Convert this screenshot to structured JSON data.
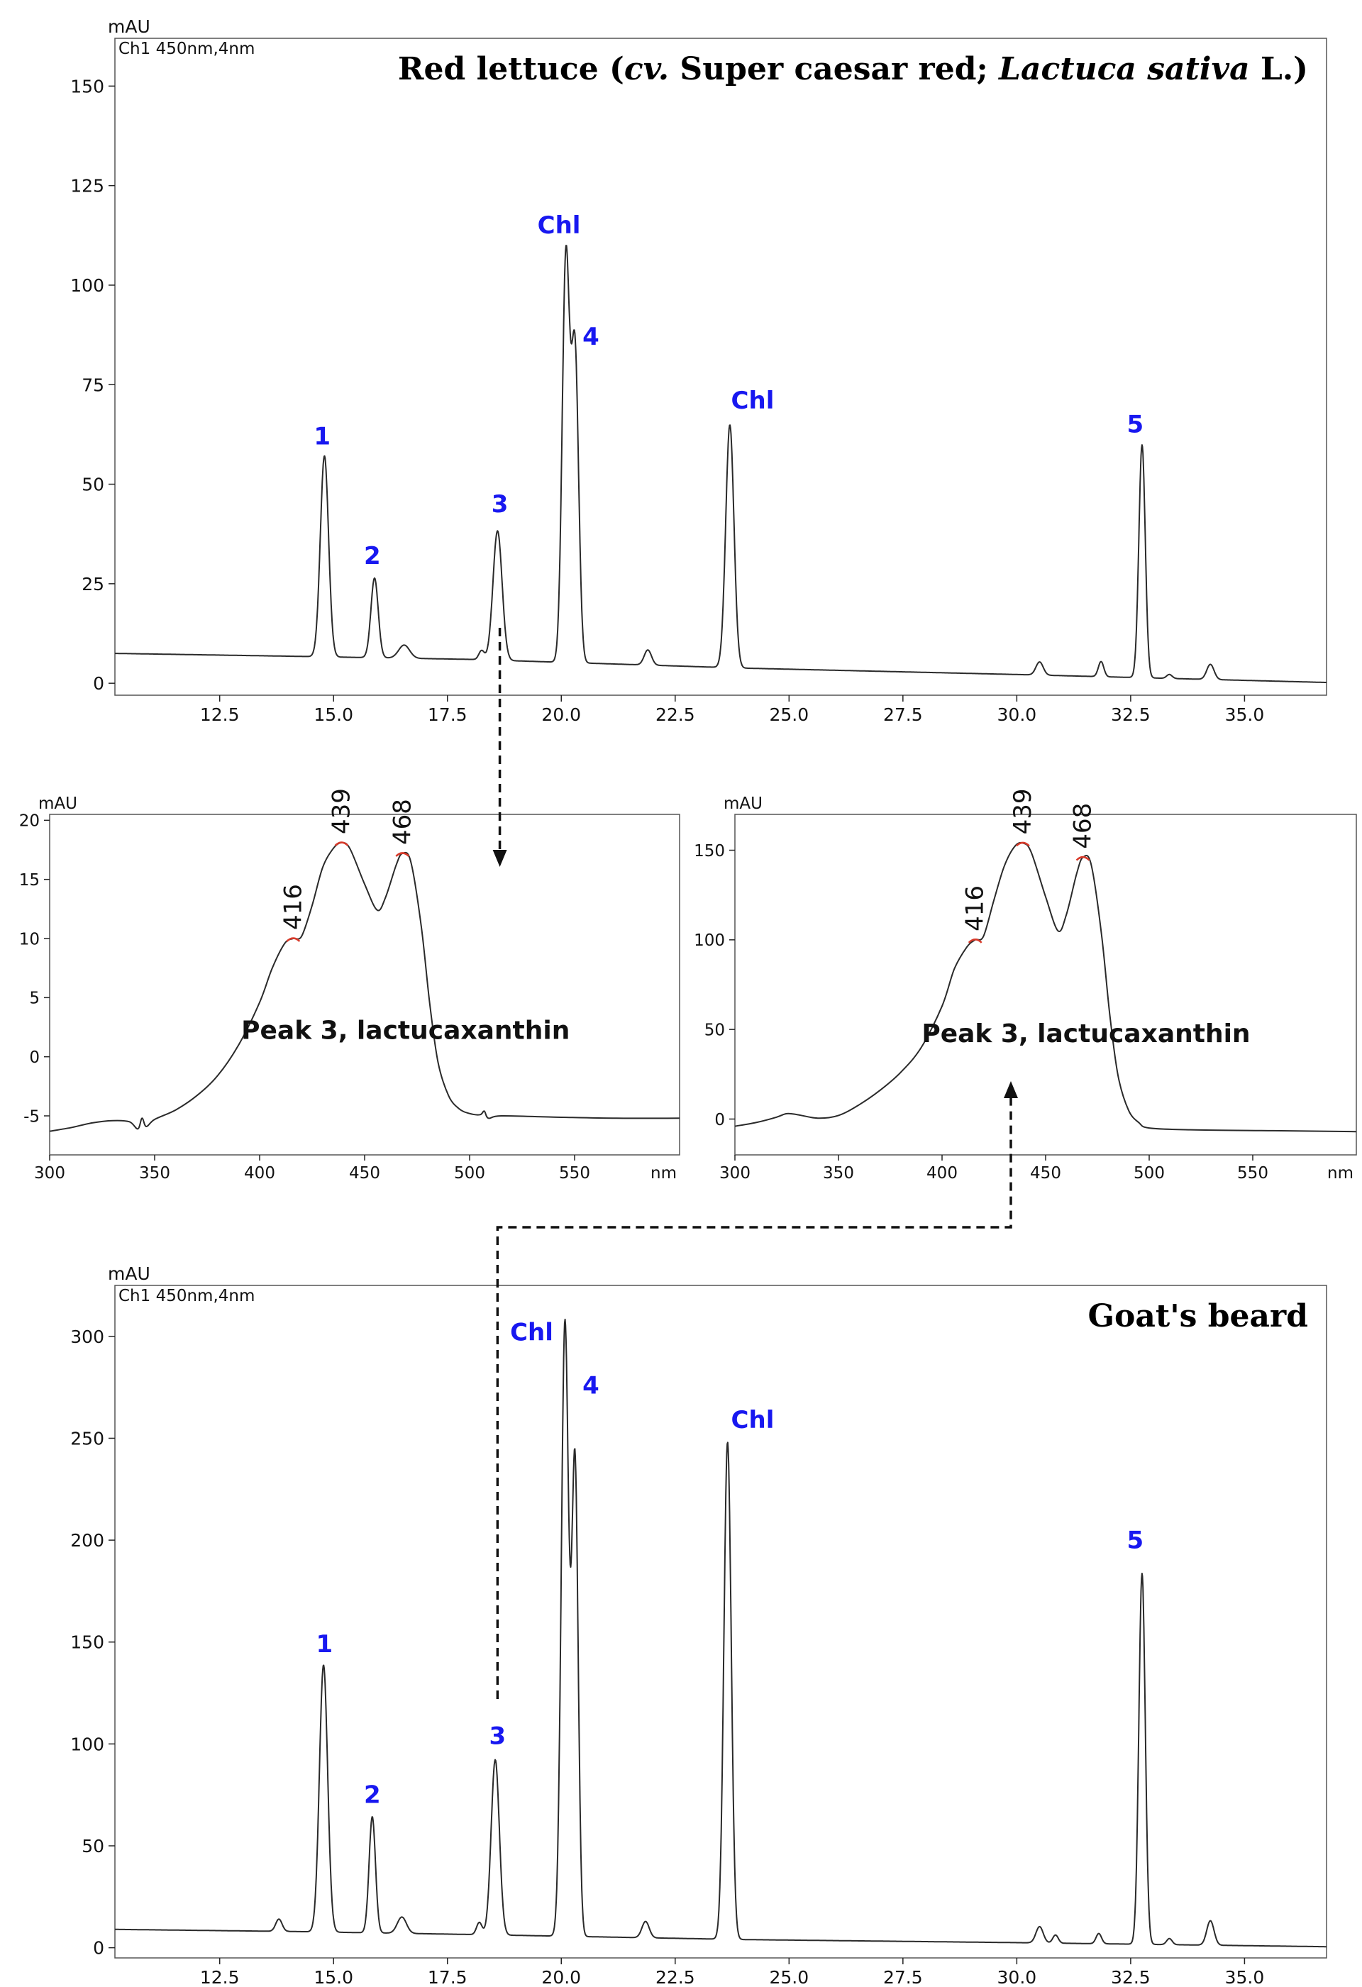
{
  "colors": {
    "trace": "#2a2a2a",
    "peak_label": "#1818f0",
    "max_marker": "#d83a2a",
    "frame": "#555555",
    "arrow": "#111111"
  },
  "chart_data": [
    {
      "id": "top",
      "type": "line",
      "title_parts": [
        {
          "text": "Red lettuce (",
          "italic": false
        },
        {
          "text": "cv.",
          "italic": true
        },
        {
          "text": " Super caesar red; ",
          "italic": false
        },
        {
          "text": "Lactuca sativa",
          "italic": true
        },
        {
          "text": " L.)",
          "italic": false
        }
      ],
      "channel_label": "Ch1 450nm,4nm",
      "ylabel": "mAU",
      "xlabel": "",
      "xlim": [
        10.2,
        36.8
      ],
      "ylim": [
        -3,
        162
      ],
      "xticks": [
        12.5,
        15.0,
        17.5,
        20.0,
        22.5,
        25.0,
        27.5,
        30.0,
        32.5,
        35.0
      ],
      "xtick_labels": [
        "12.5",
        "15.0",
        "17.5",
        "20.0",
        "22.5",
        "25.0",
        "27.5",
        "30.0",
        "32.5",
        "35.0"
      ],
      "yticks": [
        0,
        25,
        50,
        75,
        100,
        125,
        150
      ],
      "ytick_labels": [
        "0",
        "25",
        "50",
        "75",
        "100",
        "125",
        "150"
      ],
      "baseline": [
        [
          10.2,
          7.5
        ],
        [
          14.0,
          6.8
        ],
        [
          18.0,
          6.0
        ],
        [
          24.0,
          3.8
        ],
        [
          30.0,
          2.2
        ],
        [
          36.8,
          0.2
        ]
      ],
      "peaks": [
        {
          "t": 14.8,
          "h": 50.5,
          "w": 0.09
        },
        {
          "t": 15.9,
          "h": 20.0,
          "w": 0.08
        },
        {
          "t": 16.55,
          "h": 3.3,
          "w": 0.12
        },
        {
          "t": 18.25,
          "h": 2.3,
          "w": 0.06
        },
        {
          "t": 18.6,
          "h": 32.5,
          "w": 0.1
        },
        {
          "t": 20.1,
          "h": 101.0,
          "w": 0.08
        },
        {
          "t": 20.3,
          "h": 78.0,
          "w": 0.08
        },
        {
          "t": 21.9,
          "h": 3.8,
          "w": 0.08
        },
        {
          "t": 23.7,
          "h": 61.0,
          "w": 0.09
        },
        {
          "t": 30.5,
          "h": 3.3,
          "w": 0.08
        },
        {
          "t": 31.85,
          "h": 3.8,
          "w": 0.06
        },
        {
          "t": 32.75,
          "h": 58.5,
          "w": 0.07
        },
        {
          "t": 33.35,
          "h": 1.0,
          "w": 0.06
        },
        {
          "t": 34.25,
          "h": 3.8,
          "w": 0.08
        }
      ],
      "annotations": [
        {
          "text": "1",
          "t": 14.75,
          "y": 60
        },
        {
          "text": "2",
          "t": 15.85,
          "y": 30
        },
        {
          "text": "3",
          "t": 18.65,
          "y": 43
        },
        {
          "text": "Chl",
          "t": 19.95,
          "y": 113
        },
        {
          "text": "4",
          "t": 20.65,
          "y": 85
        },
        {
          "text": "Chl",
          "t": 24.2,
          "y": 69
        },
        {
          "text": "5",
          "t": 32.6,
          "y": 63
        }
      ]
    },
    {
      "id": "spec-left",
      "type": "line",
      "title": "Peak 3, lactucaxanthin",
      "ylabel": "mAU",
      "xlabel": "nm",
      "xlim": [
        300,
        600
      ],
      "ylim": [
        -8.3,
        20.5
      ],
      "xticks": [
        300,
        350,
        400,
        450,
        500,
        550
      ],
      "xtick_labels": [
        "300",
        "350",
        "400",
        "450",
        "500",
        "550"
      ],
      "yticks": [
        -5,
        0,
        5,
        10,
        15,
        20
      ],
      "ytick_labels": [
        "-5",
        "0",
        "5",
        "10",
        "15",
        "20"
      ],
      "points": [
        [
          300,
          -6.3
        ],
        [
          310,
          -6.0
        ],
        [
          320,
          -5.6
        ],
        [
          330,
          -5.4
        ],
        [
          338,
          -5.5
        ],
        [
          342,
          -6.1
        ],
        [
          344,
          -5.2
        ],
        [
          346,
          -5.9
        ],
        [
          350,
          -5.3
        ],
        [
          360,
          -4.5
        ],
        [
          370,
          -3.3
        ],
        [
          380,
          -1.6
        ],
        [
          390,
          1.0
        ],
        [
          400,
          4.6
        ],
        [
          406,
          7.5
        ],
        [
          412,
          9.6
        ],
        [
          416,
          10.0
        ],
        [
          420,
          10.2
        ],
        [
          425,
          12.8
        ],
        [
          430,
          16.0
        ],
        [
          435,
          17.6
        ],
        [
          439,
          18.1
        ],
        [
          443,
          17.6
        ],
        [
          450,
          14.6
        ],
        [
          456,
          12.4
        ],
        [
          460,
          13.5
        ],
        [
          465,
          16.2
        ],
        [
          468,
          17.2
        ],
        [
          472,
          16.5
        ],
        [
          477,
          11.0
        ],
        [
          481,
          4.5
        ],
        [
          485,
          -0.5
        ],
        [
          490,
          -3.3
        ],
        [
          495,
          -4.4
        ],
        [
          500,
          -4.8
        ],
        [
          505,
          -4.9
        ],
        [
          507,
          -4.6
        ],
        [
          509,
          -5.2
        ],
        [
          515,
          -5.0
        ],
        [
          540,
          -5.1
        ],
        [
          570,
          -5.2
        ],
        [
          600,
          -5.2
        ]
      ],
      "maxima": [
        {
          "text": "416",
          "x": 416,
          "y": 10.0
        },
        {
          "text": "439",
          "x": 439,
          "y": 18.1
        },
        {
          "text": "468",
          "x": 468,
          "y": 17.2
        }
      ]
    },
    {
      "id": "spec-right",
      "type": "line",
      "title": "Peak 3, lactucaxanthin",
      "ylabel": "mAU",
      "xlabel": "nm",
      "xlim": [
        300,
        600
      ],
      "ylim": [
        -20,
        170
      ],
      "xticks": [
        300,
        350,
        400,
        450,
        500,
        550
      ],
      "xtick_labels": [
        "300",
        "350",
        "400",
        "450",
        "500",
        "550"
      ],
      "yticks": [
        0,
        50,
        100,
        150
      ],
      "ytick_labels": [
        "0",
        "50",
        "100",
        "150"
      ],
      "points": [
        [
          300,
          -4.0
        ],
        [
          310,
          -2.0
        ],
        [
          320,
          1.0
        ],
        [
          325,
          3.0
        ],
        [
          330,
          2.5
        ],
        [
          340,
          0.5
        ],
        [
          350,
          2.0
        ],
        [
          360,
          8.0
        ],
        [
          370,
          16.0
        ],
        [
          380,
          26.0
        ],
        [
          390,
          40.0
        ],
        [
          400,
          63.0
        ],
        [
          406,
          84.0
        ],
        [
          412,
          96.0
        ],
        [
          416,
          100.0
        ],
        [
          420,
          102.0
        ],
        [
          425,
          122.0
        ],
        [
          430,
          141.0
        ],
        [
          435,
          152.0
        ],
        [
          439,
          154.0
        ],
        [
          443,
          149.0
        ],
        [
          450,
          124.0
        ],
        [
          456,
          105.0
        ],
        [
          460,
          114.0
        ],
        [
          465,
          137.0
        ],
        [
          468,
          146.0
        ],
        [
          472,
          142.0
        ],
        [
          477,
          103.0
        ],
        [
          481,
          58.0
        ],
        [
          485,
          24.0
        ],
        [
          490,
          5.0
        ],
        [
          495,
          -2.0
        ],
        [
          500,
          -5.0
        ],
        [
          520,
          -6.0
        ],
        [
          560,
          -6.5
        ],
        [
          600,
          -7.0
        ]
      ],
      "maxima": [
        {
          "text": "416",
          "x": 416,
          "y": 100.0
        },
        {
          "text": "439",
          "x": 439,
          "y": 154.0
        },
        {
          "text": "468",
          "x": 468,
          "y": 146.0
        }
      ]
    },
    {
      "id": "bottom",
      "type": "line",
      "title_parts": [
        {
          "text": "Goat's beard",
          "italic": false
        }
      ],
      "channel_label": "Ch1 450nm,4nm",
      "ylabel": "mAU",
      "xlabel": "",
      "xlim": [
        10.2,
        36.8
      ],
      "ylim": [
        -5,
        325
      ],
      "xticks": [
        12.5,
        15.0,
        17.5,
        20.0,
        22.5,
        25.0,
        27.5,
        30.0,
        32.5,
        35.0
      ],
      "xtick_labels": [
        "12.5",
        "15.0",
        "17.5",
        "20.0",
        "22.5",
        "25.0",
        "27.5",
        "30.0",
        "32.5",
        "35.0"
      ],
      "yticks": [
        0,
        50,
        100,
        150,
        200,
        250,
        300
      ],
      "ytick_labels": [
        "0",
        "50",
        "100",
        "150",
        "200",
        "250",
        "300"
      ],
      "baseline": [
        [
          10.2,
          9.0
        ],
        [
          14.0,
          8.0
        ],
        [
          18.0,
          6.5
        ],
        [
          24.0,
          4.0
        ],
        [
          30.0,
          2.5
        ],
        [
          36.8,
          0.5
        ]
      ],
      "peaks": [
        {
          "t": 13.8,
          "h": 6.0,
          "w": 0.07
        },
        {
          "t": 14.78,
          "h": 131.0,
          "w": 0.09
        },
        {
          "t": 15.85,
          "h": 57.0,
          "w": 0.07
        },
        {
          "t": 16.5,
          "h": 8.0,
          "w": 0.1
        },
        {
          "t": 18.2,
          "h": 6.0,
          "w": 0.06
        },
        {
          "t": 18.55,
          "h": 86.0,
          "w": 0.09
        },
        {
          "t": 20.08,
          "h": 301.0,
          "w": 0.08
        },
        {
          "t": 20.3,
          "h": 232.0,
          "w": 0.07
        },
        {
          "t": 21.85,
          "h": 8.0,
          "w": 0.08
        },
        {
          "t": 23.65,
          "h": 244.0,
          "w": 0.08
        },
        {
          "t": 30.5,
          "h": 8.0,
          "w": 0.08
        },
        {
          "t": 30.85,
          "h": 4.0,
          "w": 0.06
        },
        {
          "t": 31.8,
          "h": 5.0,
          "w": 0.06
        },
        {
          "t": 32.75,
          "h": 182.0,
          "w": 0.07
        },
        {
          "t": 33.35,
          "h": 3.0,
          "w": 0.06
        },
        {
          "t": 34.25,
          "h": 12.0,
          "w": 0.08
        }
      ],
      "annotations": [
        {
          "text": "1",
          "t": 14.8,
          "y": 145
        },
        {
          "text": "2",
          "t": 15.85,
          "y": 71
        },
        {
          "text": "3",
          "t": 18.6,
          "y": 100
        },
        {
          "text": "Chl",
          "t": 19.35,
          "y": 298
        },
        {
          "text": "4",
          "t": 20.65,
          "y": 272
        },
        {
          "text": "Chl",
          "t": 24.2,
          "y": 255
        },
        {
          "text": "5",
          "t": 32.6,
          "y": 196
        }
      ]
    }
  ]
}
